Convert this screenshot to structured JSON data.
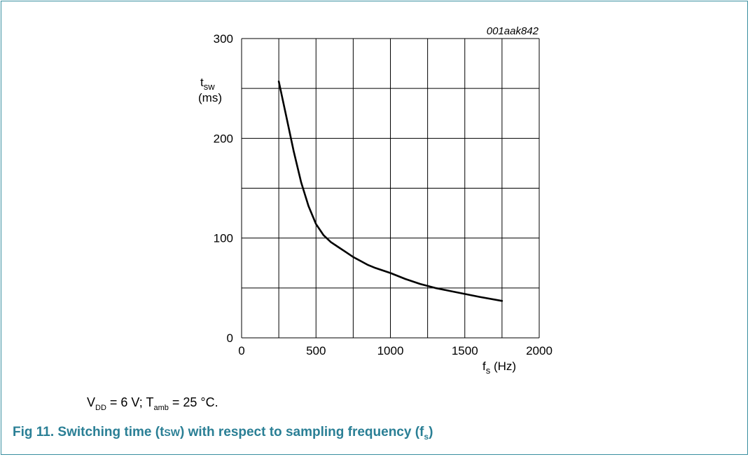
{
  "chart_data": {
    "type": "line",
    "code": "001aak842",
    "ylabel_main": "t",
    "ylabel_sub": "sw",
    "ylabel_unit": "(ms)",
    "xlabel_main": "f",
    "xlabel_sub": "s",
    "xlabel_unit": "(Hz)",
    "xlim": [
      0,
      2000
    ],
    "ylim": [
      0,
      300
    ],
    "xticks": [
      0,
      500,
      1000,
      1500,
      2000
    ],
    "yticks": [
      0,
      100,
      200,
      300
    ],
    "grid_x_step": 250,
    "grid_y_step": 50,
    "grid": true,
    "series": [
      {
        "x": [
          250,
          300,
          350,
          400,
          450,
          500,
          550,
          600,
          650,
          700,
          750,
          800,
          850,
          900,
          1000,
          1100,
          1200,
          1300,
          1400,
          1500,
          1600,
          1750
        ],
        "y": [
          257,
          222,
          187,
          156,
          132,
          114,
          103,
          96,
          91,
          86,
          81,
          77,
          73,
          70,
          65,
          59,
          54,
          50,
          47,
          44,
          41,
          37
        ]
      }
    ]
  },
  "conditions": {
    "v": "V",
    "v_sub": "DD",
    "v_val": " = 6 V; T",
    "t_sub": "amb",
    "t_val": " = 25 °C."
  },
  "caption": {
    "lead": "Fig 11. Switching time (t",
    "sc": "SW",
    "mid": ") with respect to sampling frequency (f",
    "sub": "s",
    "end": ")"
  }
}
